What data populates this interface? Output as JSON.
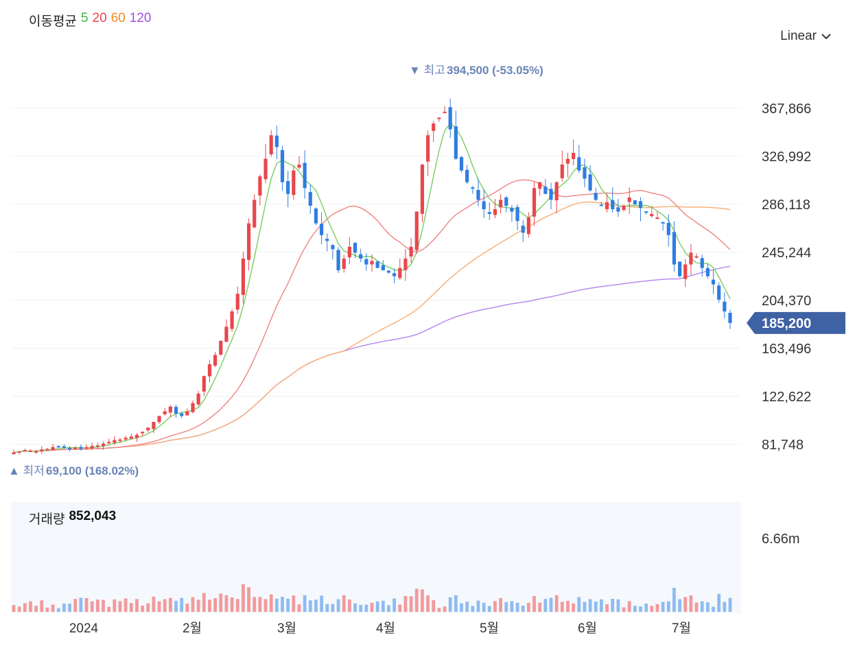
{
  "ma_legend": {
    "title": "이동평균",
    "periods": [
      {
        "label": "5",
        "color": "#3cb44b"
      },
      {
        "label": "20",
        "color": "#e8474c"
      },
      {
        "label": "60",
        "color": "#f08a24"
      },
      {
        "label": "120",
        "color": "#9b51e0"
      }
    ]
  },
  "scale_select": {
    "value": "Linear",
    "icon": "chevron-down-icon"
  },
  "volume_legend": {
    "title": "거래량",
    "value": "852,043"
  },
  "current_price_label": "185,200",
  "colors": {
    "up": "#e8474c",
    "down": "#2f7de1",
    "ma5": "#7fcf6b",
    "ma20": "#f08a8a",
    "ma60": "#f7b27a",
    "ma120": "#b98af0",
    "price_tag": "#3f62a4"
  },
  "chart_data": {
    "type": "candlestick",
    "y_axis_ticks": [
      "367,866",
      "326,992",
      "286,118",
      "245,244",
      "204,370",
      "163,496",
      "122,622",
      "81,748"
    ],
    "y_axis_values": [
      367866,
      326992,
      286118,
      245244,
      204370,
      163496,
      122622,
      81748
    ],
    "y_range": [
      58000,
      400000
    ],
    "x_axis_labels": [
      "2024",
      "2월",
      "3월",
      "4월",
      "5월",
      "6월",
      "7월"
    ],
    "volume_axis_tick": "6.66m",
    "high_annotation": {
      "marker": "▼",
      "label": "최고",
      "value": "394,500 (-53.05%)",
      "price": 394500
    },
    "low_annotation": {
      "marker": "▲",
      "label": "최저",
      "value": "69,100 (168.02%)",
      "price": 69100
    },
    "current_price": 185200,
    "close_series": [
      75000,
      76000,
      77000,
      76500,
      76000,
      77500,
      78000,
      79500,
      80000,
      79000,
      78500,
      79000,
      78000,
      79500,
      80500,
      81000,
      82500,
      84000,
      85500,
      86000,
      87500,
      88500,
      90000,
      92500,
      96000,
      101000,
      106000,
      110000,
      114000,
      108000,
      106000,
      110000,
      117000,
      125000,
      140000,
      150000,
      158000,
      170000,
      182000,
      195000,
      210000,
      240000,
      270000,
      290000,
      310000,
      325000,
      345000,
      335000,
      305000,
      295000,
      315000,
      320000,
      300000,
      285000,
      270000,
      260000,
      255000,
      248000,
      230000,
      240000,
      250000,
      245000,
      240000,
      235000,
      238000,
      232000,
      230000,
      228000,
      225000,
      232000,
      240000,
      250000,
      280000,
      320000,
      345000,
      355000,
      360000,
      365000,
      350000,
      325000,
      315000,
      305000,
      300000,
      290000,
      282000,
      278000,
      282000,
      290000,
      285000,
      280000,
      272000,
      262000,
      275000,
      300000,
      305000,
      295000,
      290000,
      305000,
      320000,
      325000,
      330000,
      315000,
      308000,
      298000,
      290000,
      285000,
      288000,
      282000,
      280000,
      285000,
      292000,
      286000,
      283000,
      280000,
      278000,
      275000,
      270000,
      260000,
      235000,
      225000,
      235000,
      245000,
      242000,
      232000,
      225000,
      218000,
      205000,
      195000,
      185200
    ]
  }
}
